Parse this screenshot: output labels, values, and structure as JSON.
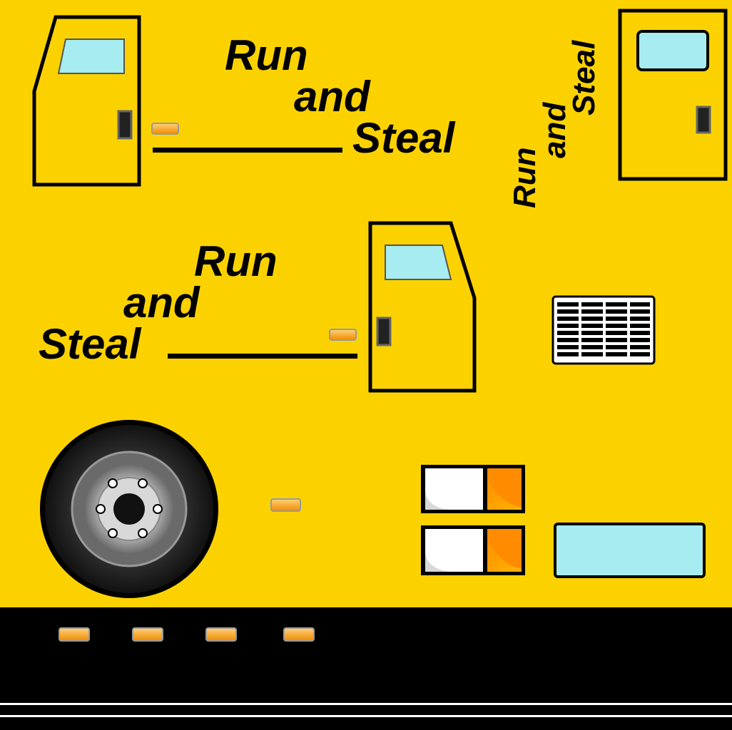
{
  "logos": [
    {
      "id": "logo-top-left",
      "line1": "Run",
      "line2": "and",
      "line3": "Steal"
    },
    {
      "id": "logo-vertical",
      "line1": "Run",
      "line2": "and",
      "line3": "Steal"
    },
    {
      "id": "logo-middle",
      "line1": "Run",
      "line2": "and",
      "line3": "Steal"
    }
  ],
  "colors": {
    "body_paint": "#fbd200",
    "underbody": "#000000",
    "window_glass": "#a6ecf0",
    "outline": "#000000",
    "marker_light": "#f7a21a",
    "signal_amber": "#ff8c00",
    "lamp_white": "#ffffff",
    "tire": "#1a1a1a",
    "hub": "#c8c8c8"
  },
  "icons": [
    "door-icon",
    "window-icon",
    "door-handle-icon",
    "marker-light-icon",
    "vent-grille-icon",
    "wheel-icon",
    "headlight-icon",
    "turn-signal-icon"
  ]
}
